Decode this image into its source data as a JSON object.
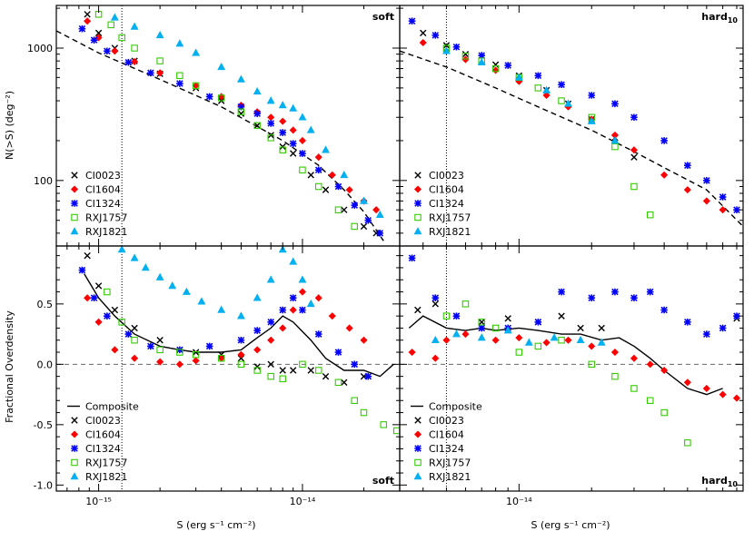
{
  "figure": {
    "xlabel": "S (erg s⁻¹ cm⁻²)",
    "ylabel_top": "N(>S) (deg⁻²)",
    "ylabel_bottom": "Fractional Overdensity"
  },
  "series_styles": [
    {
      "name": "CI0023",
      "color": "#000000",
      "marker": "x"
    },
    {
      "name": "CI1604",
      "color": "#ff0000",
      "marker": "diamond"
    },
    {
      "name": "CI1324",
      "color": "#0000ff",
      "marker": "star"
    },
    {
      "name": "RXJ1757",
      "color": "#33cc00",
      "marker": "square"
    },
    {
      "name": "RXJ1821",
      "color": "#00b0f0",
      "marker": "triangle"
    }
  ],
  "chart_data": [
    {
      "type": "scatter",
      "panel": "top-left",
      "corner_label": "soft",
      "xscale": "log",
      "yscale": "log",
      "xlim": [
        6.2e-16,
        3e-14
      ],
      "ylim": [
        32,
        2100
      ],
      "xticks": [
        {
          "v": 1e-15,
          "label": ""
        },
        {
          "v": 1e-14,
          "label": ""
        }
      ],
      "yticks": [
        {
          "v": 100,
          "label": "100"
        },
        {
          "v": 1000,
          "label": "1000"
        }
      ],
      "vline": 1.3e-15,
      "legend": [
        "CI0023",
        "CI1604",
        "CI1324",
        "RXJ1757",
        "RXJ1821"
      ],
      "legend_placement": "bottom-left",
      "model_curve": {
        "style": "dashed",
        "x": [
          6.2e-16,
          1e-15,
          2e-15,
          4e-15,
          8e-15,
          1.2e-14,
          1.6e-14,
          2e-14,
          2.5e-14
        ],
        "y": [
          1350,
          920,
          580,
          360,
          200,
          130,
          85,
          58,
          35
        ]
      },
      "series": [
        {
          "name": "CI0023",
          "x": [
            8.8e-16,
            1e-15,
            1.2e-15,
            1.5e-15,
            2e-15,
            3e-15,
            4e-15,
            5e-15,
            6e-15,
            7e-15,
            8e-15,
            9e-15,
            1.1e-14,
            1.3e-14,
            1.6e-14,
            2e-14,
            2.3e-14
          ],
          "y": [
            1800,
            1300,
            1000,
            800,
            640,
            500,
            400,
            320,
            260,
            220,
            180,
            160,
            110,
            85,
            60,
            45,
            40
          ]
        },
        {
          "name": "CI1604",
          "x": [
            8.8e-16,
            1e-15,
            1.2e-15,
            1.5e-15,
            2e-15,
            3e-15,
            4e-15,
            5e-15,
            6e-15,
            7e-15,
            8e-15,
            9e-15,
            1e-14,
            1.2e-14,
            1.4e-14,
            1.7e-14,
            2e-14,
            2.3e-14
          ],
          "y": [
            1600,
            1200,
            950,
            790,
            650,
            520,
            430,
            370,
            330,
            300,
            280,
            240,
            200,
            150,
            110,
            85,
            70,
            60
          ]
        },
        {
          "name": "CI1324",
          "x": [
            8.3e-16,
            9.5e-16,
            1.1e-15,
            1.4e-15,
            1.8e-15,
            2.5e-15,
            3.5e-15,
            5e-15,
            6e-15,
            7e-15,
            8e-15,
            9e-15,
            1e-14,
            1.2e-14,
            1.5e-14,
            1.8e-14,
            2.1e-14,
            2.4e-14
          ],
          "y": [
            1400,
            1150,
            950,
            780,
            650,
            540,
            430,
            360,
            320,
            270,
            230,
            190,
            160,
            120,
            90,
            65,
            50,
            40
          ]
        },
        {
          "name": "RXJ1757",
          "x": [
            1e-15,
            1.15e-15,
            1.3e-15,
            1.5e-15,
            2e-15,
            2.5e-15,
            3e-15,
            4e-15,
            5e-15,
            6e-15,
            7e-15,
            8e-15,
            1e-14,
            1.2e-14,
            1.5e-14,
            1.8e-14
          ],
          "y": [
            1800,
            1500,
            1200,
            1000,
            800,
            620,
            520,
            420,
            330,
            260,
            210,
            170,
            120,
            90,
            60,
            45
          ]
        },
        {
          "name": "RXJ1821",
          "x": [
            1.2e-15,
            1.5e-15,
            2e-15,
            2.5e-15,
            3e-15,
            4e-15,
            5e-15,
            6e-15,
            7e-15,
            8e-15,
            9e-15,
            1e-14,
            1.1e-14,
            1.3e-14,
            1.6e-14,
            2e-14,
            2.4e-14
          ],
          "y": [
            1700,
            1450,
            1250,
            1080,
            920,
            720,
            580,
            470,
            400,
            370,
            350,
            300,
            240,
            170,
            110,
            70,
            55
          ]
        }
      ]
    },
    {
      "type": "scatter",
      "panel": "top-right",
      "corner_label": "hard",
      "corner_label_sub": "10",
      "xscale": "log",
      "yscale": "log",
      "xlim": [
        3.2e-15,
        8.5e-14
      ],
      "ylim": [
        32,
        2100
      ],
      "xticks": [
        {
          "v": 1e-14,
          "label": ""
        }
      ],
      "yticks": [
        {
          "v": 100,
          "label": ""
        },
        {
          "v": 1000,
          "label": ""
        }
      ],
      "vline": 5e-15,
      "legend": [
        "CI0023",
        "CI1604",
        "CI1324",
        "RXJ1757",
        "RXJ1821"
      ],
      "legend_placement": "bottom-left",
      "model_curve": {
        "style": "dashed",
        "x": [
          3.2e-15,
          5e-15,
          8e-15,
          1.2e-14,
          2e-14,
          3e-14,
          4e-14,
          6e-14,
          8.5e-14
        ],
        "y": [
          950,
          720,
          500,
          360,
          240,
          165,
          125,
          85,
          45
        ]
      },
      "series": [
        {
          "name": "CI0023",
          "x": [
            4e-15,
            5e-15,
            6e-15,
            8e-15,
            1e-14,
            1.3e-14,
            1.6e-14,
            2e-14,
            2.5e-14,
            3e-14
          ],
          "y": [
            1300,
            1050,
            900,
            750,
            620,
            480,
            380,
            290,
            210,
            150
          ]
        },
        {
          "name": "CI1604",
          "x": [
            4e-15,
            5e-15,
            6e-15,
            8e-15,
            1e-14,
            1.3e-14,
            1.6e-14,
            2e-14,
            2.5e-14,
            3e-14,
            4e-14,
            5e-14,
            6e-14,
            7e-14
          ],
          "y": [
            1100,
            950,
            820,
            680,
            560,
            440,
            360,
            290,
            220,
            170,
            110,
            85,
            70,
            60
          ]
        },
        {
          "name": "CI1324",
          "x": [
            3.6e-15,
            4.5e-15,
            5.5e-15,
            7e-15,
            9e-15,
            1.2e-14,
            1.5e-14,
            2e-14,
            2.5e-14,
            3e-14,
            4e-14,
            5e-14,
            6e-14,
            7e-14,
            8e-14
          ],
          "y": [
            1600,
            1250,
            1020,
            880,
            740,
            620,
            530,
            440,
            380,
            300,
            200,
            130,
            100,
            75,
            60
          ]
        },
        {
          "name": "RXJ1757",
          "x": [
            5e-15,
            6e-15,
            7e-15,
            8e-15,
            1e-14,
            1.2e-14,
            1.5e-14,
            2e-14,
            2.5e-14,
            3e-14,
            3.5e-14
          ],
          "y": [
            1000,
            870,
            800,
            700,
            600,
            500,
            400,
            300,
            180,
            90,
            55
          ]
        },
        {
          "name": "RXJ1821",
          "x": [
            5e-15,
            7e-15,
            1e-14,
            1.3e-14,
            1.6e-14,
            2e-14,
            2.5e-14
          ],
          "y": [
            950,
            780,
            600,
            480,
            380,
            280,
            200
          ]
        }
      ]
    },
    {
      "type": "scatter",
      "panel": "bottom-left",
      "corner_label": "soft",
      "xscale": "log",
      "yscale": "linear",
      "xlim": [
        6.2e-16,
        3e-14
      ],
      "ylim": [
        -1.05,
        0.98
      ],
      "xticks": [
        {
          "v": 1e-15,
          "label": "10⁻¹⁵"
        },
        {
          "v": 1e-14,
          "label": "10⁻¹⁴"
        }
      ],
      "yticks": [
        {
          "v": -1.0,
          "label": "-1.0"
        },
        {
          "v": -0.5,
          "label": "-0.5"
        },
        {
          "v": 0.0,
          "label": "0.0"
        },
        {
          "v": 0.5,
          "label": "0.5"
        }
      ],
      "vline": 1.3e-15,
      "hline": 0.0,
      "legend": [
        "Composite",
        "CI0023",
        "CI1604",
        "CI1324",
        "RXJ1757",
        "RXJ1821"
      ],
      "legend_placement": "bottom-left",
      "composite": {
        "name": "Composite",
        "x": [
          8.5e-16,
          1e-15,
          1.2e-15,
          1.5e-15,
          2e-15,
          2.5e-15,
          3e-15,
          4e-15,
          5e-15,
          6e-15,
          7e-15,
          8e-15,
          9e-15,
          1.1e-14,
          1.3e-14,
          1.6e-14,
          2e-14,
          2.4e-14,
          2.8e-14
        ],
        "y": [
          0.75,
          0.55,
          0.4,
          0.25,
          0.15,
          0.12,
          0.1,
          0.1,
          0.12,
          0.22,
          0.3,
          0.4,
          0.35,
          0.2,
          0.05,
          -0.05,
          -0.05,
          -0.1,
          0.0
        ]
      },
      "series": [
        {
          "name": "CI0023",
          "x": [
            8.8e-16,
            1e-15,
            1.2e-15,
            1.5e-15,
            2e-15,
            3e-15,
            4e-15,
            5e-15,
            6e-15,
            7e-15,
            8e-15,
            9e-15,
            1.1e-14,
            1.3e-14,
            1.6e-14,
            2e-14
          ],
          "y": [
            0.9,
            0.65,
            0.45,
            0.3,
            0.2,
            0.1,
            0.08,
            0.05,
            -0.02,
            0.0,
            -0.05,
            -0.05,
            -0.05,
            -0.1,
            -0.15,
            -0.1
          ]
        },
        {
          "name": "CI1604",
          "x": [
            8.8e-16,
            1e-15,
            1.2e-15,
            1.5e-15,
            2e-15,
            2.5e-15,
            3e-15,
            4e-15,
            5e-15,
            6e-15,
            7e-15,
            8e-15,
            9e-15,
            1e-14,
            1.2e-14,
            1.4e-14,
            1.7e-14,
            2e-14
          ],
          "y": [
            0.55,
            0.35,
            0.12,
            0.05,
            0.02,
            0.0,
            0.03,
            0.05,
            0.08,
            0.12,
            0.2,
            0.3,
            0.45,
            0.6,
            0.55,
            0.4,
            0.3,
            0.2
          ]
        },
        {
          "name": "CI1324",
          "x": [
            8.3e-16,
            9.5e-16,
            1.1e-15,
            1.4e-15,
            1.8e-15,
            2.5e-15,
            3.5e-15,
            5e-15,
            6e-15,
            7e-15,
            8e-15,
            9e-15,
            1e-14,
            1.2e-14,
            1.5e-14,
            1.8e-14,
            2.1e-14
          ],
          "y": [
            0.78,
            0.55,
            0.4,
            0.25,
            0.15,
            0.12,
            0.15,
            0.2,
            0.28,
            0.35,
            0.45,
            0.55,
            0.45,
            0.25,
            0.1,
            0.0,
            -0.1
          ]
        },
        {
          "name": "RXJ1757",
          "x": [
            1.1e-15,
            1.3e-15,
            1.5e-15,
            2e-15,
            2.5e-15,
            3e-15,
            4e-15,
            5e-15,
            6e-15,
            7e-15,
            8e-15,
            1e-14,
            1.2e-14,
            1.5e-14,
            1.8e-14,
            2e-14,
            2.5e-14,
            2.9e-14
          ],
          "y": [
            0.6,
            0.35,
            0.2,
            0.12,
            0.1,
            0.08,
            0.05,
            0.0,
            -0.05,
            -0.1,
            -0.12,
            0.0,
            -0.05,
            -0.15,
            -0.3,
            -0.4,
            -0.5,
            -0.55
          ]
        },
        {
          "name": "RXJ1821",
          "x": [
            1.3e-15,
            1.5e-15,
            1.7e-15,
            2e-15,
            2.3e-15,
            2.7e-15,
            3.2e-15,
            4e-15,
            5e-15,
            6e-15,
            7e-15,
            8e-15,
            9e-15,
            1e-14,
            1.1e-14
          ],
          "y": [
            0.95,
            0.88,
            0.8,
            0.72,
            0.65,
            0.6,
            0.52,
            0.45,
            0.4,
            0.55,
            0.7,
            0.95,
            0.85,
            0.7,
            0.5
          ]
        }
      ]
    },
    {
      "type": "scatter",
      "panel": "bottom-right",
      "corner_label": "hard",
      "corner_label_sub": "10",
      "xscale": "log",
      "yscale": "linear",
      "xlim": [
        3.2e-15,
        8.5e-14
      ],
      "ylim": [
        -1.05,
        0.98
      ],
      "xticks": [
        {
          "v": 1e-14,
          "label": "10⁻¹⁴"
        }
      ],
      "yticks": [
        {
          "v": -1.0,
          "label": ""
        },
        {
          "v": -0.5,
          "label": ""
        },
        {
          "v": 0.0,
          "label": ""
        },
        {
          "v": 0.5,
          "label": ""
        }
      ],
      "vline": 5e-15,
      "hline": 0.0,
      "legend": [
        "Composite",
        "CI0023",
        "CI1604",
        "CI1324",
        "RXJ1757",
        "RXJ1821"
      ],
      "legend_placement": "bottom-left",
      "composite": {
        "name": "Composite",
        "x": [
          3.5e-15,
          4e-15,
          5e-15,
          6e-15,
          7e-15,
          8e-15,
          1e-14,
          1.2e-14,
          1.5e-14,
          1.8e-14,
          2.2e-14,
          2.6e-14,
          3e-14,
          3.5e-14,
          4e-14,
          5e-14,
          6e-14,
          7e-14
        ],
        "y": [
          0.3,
          0.4,
          0.3,
          0.28,
          0.3,
          0.28,
          0.3,
          0.28,
          0.25,
          0.25,
          0.2,
          0.22,
          0.15,
          0.05,
          -0.05,
          -0.2,
          -0.25,
          -0.2
        ]
      },
      "series": [
        {
          "name": "CI0023",
          "x": [
            3.8e-15,
            4.5e-15,
            5.5e-15,
            7e-15,
            9e-15,
            1.2e-14,
            1.5e-14,
            1.8e-14,
            2.2e-14,
            8e-14
          ],
          "y": [
            0.45,
            0.5,
            0.4,
            0.35,
            0.38,
            0.35,
            0.4,
            0.3,
            0.3,
            0.38
          ]
        },
        {
          "name": "CI1604",
          "x": [
            3.6e-15,
            4.5e-15,
            5e-15,
            6e-15,
            8e-15,
            1e-14,
            1.3e-14,
            1.6e-14,
            2e-14,
            2.5e-14,
            3e-14,
            3.5e-14,
            4e-14,
            5e-14,
            6e-14,
            7e-14,
            8e-14
          ],
          "y": [
            0.1,
            0.05,
            0.2,
            0.25,
            0.2,
            0.22,
            0.18,
            0.2,
            0.15,
            0.1,
            0.05,
            0.0,
            -0.05,
            -0.15,
            -0.2,
            -0.25,
            -0.28
          ]
        },
        {
          "name": "CI1324",
          "x": [
            3.6e-15,
            4.5e-15,
            5.5e-15,
            7e-15,
            9e-15,
            1.2e-14,
            1.5e-14,
            2e-14,
            2.5e-14,
            3e-14,
            3.5e-14,
            4e-14,
            5e-14,
            6e-14,
            7e-14,
            8e-14
          ],
          "y": [
            0.88,
            0.55,
            0.4,
            0.3,
            0.3,
            0.35,
            0.6,
            0.55,
            0.6,
            0.55,
            0.6,
            0.45,
            0.35,
            0.25,
            0.3,
            0.4
          ]
        },
        {
          "name": "RXJ1757",
          "x": [
            5e-15,
            6e-15,
            7e-15,
            8e-15,
            1e-14,
            1.2e-14,
            1.5e-14,
            2e-14,
            2.5e-14,
            3e-14,
            3.5e-14,
            4e-14,
            5e-14
          ],
          "y": [
            0.4,
            0.5,
            0.35,
            0.3,
            0.1,
            0.15,
            0.2,
            0.0,
            -0.1,
            -0.2,
            -0.3,
            -0.4,
            -0.65
          ]
        },
        {
          "name": "RXJ1821",
          "x": [
            4.5e-15,
            5.5e-15,
            7e-15,
            9e-15,
            1.1e-14,
            1.4e-14,
            1.8e-14,
            2.2e-14
          ],
          "y": [
            0.2,
            0.25,
            0.22,
            0.28,
            0.18,
            0.22,
            0.2,
            0.18
          ]
        }
      ]
    }
  ]
}
